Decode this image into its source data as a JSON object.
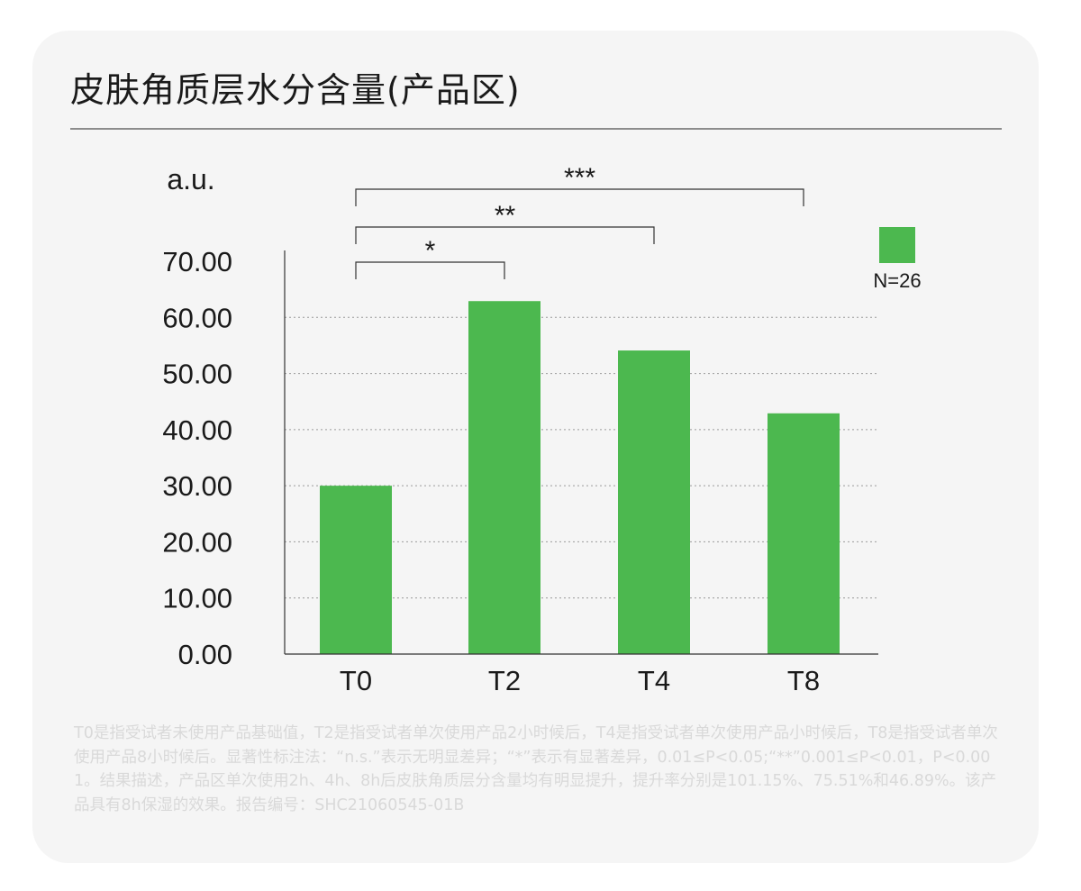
{
  "title": "皮肤角质层水分含量(产品区)",
  "chart_data": {
    "type": "bar",
    "ylabel": "a.u.",
    "categories": [
      "T0",
      "T2",
      "T4",
      "T8"
    ],
    "values": [
      30.0,
      62.9,
      54.1,
      42.9
    ],
    "ylim": [
      0,
      70
    ],
    "yticks": [
      "0.00",
      "10.00",
      "20.00",
      "30.00",
      "40.00",
      "50.00",
      "60.00",
      "70.00"
    ],
    "grid": "horizontal dotted",
    "bar_color": "#4cb84f",
    "legend": {
      "label": "N=26",
      "color": "#4cb84f",
      "placement": "top-right"
    },
    "significance": [
      {
        "from": "T0",
        "to": "T2",
        "label": "*"
      },
      {
        "from": "T0",
        "to": "T4",
        "label": "**"
      },
      {
        "from": "T0",
        "to": "T8",
        "label": "***"
      }
    ]
  },
  "footnote": "T0是指受试者未使用产品基础值，T2是指受试者单次使用产品2小时候后，T4是指受试者单次使用产品小时候后，T8是指受试者单次使用产品8小时候后。显著性标注法：“n.s.”表示无明显差异；“*”表示有显著差异，0.01≤P<0.05;“**”0.001≤P<0.01，P<0.001。结果描述，产品区单次使用2h、4h、8h后皮肤角质层分含量均有明显提升，提升率分别是101.15%、75.51%和46.89%。该产品具有8h保湿的效果。报告编号：SHC21060545-01B"
}
